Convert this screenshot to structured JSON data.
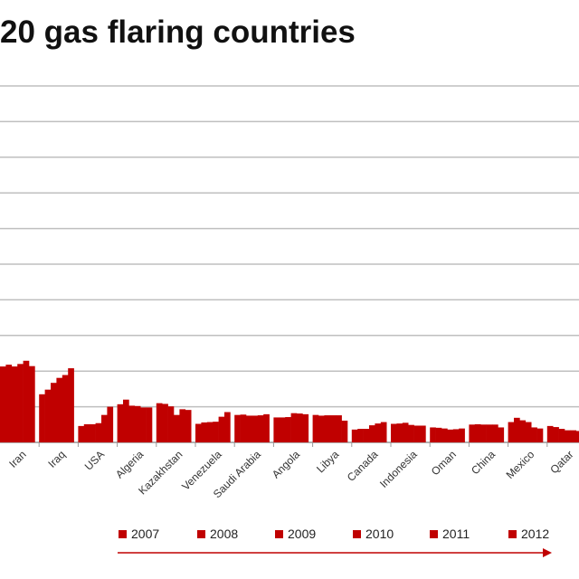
{
  "title": "20 gas flaring countries",
  "colors": {
    "bar": "#c00000",
    "grid": "#bfbfbf",
    "axis": "#999999",
    "arrow": "#c00000"
  },
  "chart_data": {
    "type": "bar",
    "title": "20 gas flaring countries",
    "xlabel": "",
    "ylabel": "",
    "ylim": [
      0,
      100
    ],
    "grid": true,
    "legend_position": "bottom",
    "series_names": [
      "2007",
      "2008",
      "2009",
      "2010",
      "2011",
      "2012"
    ],
    "categories": [
      "Iran",
      "Iraq",
      "USA",
      "Algeria",
      "Kazakhstan",
      "Venezuela",
      "Saudi Arabia",
      "Angola",
      "Libya",
      "Canada",
      "Indonesia",
      "Oman",
      "China",
      "Mexico",
      "Qatar"
    ],
    "values": [
      [
        21.3,
        21.8,
        21.3,
        22.0,
        22.9,
        21.4
      ],
      [
        13.5,
        14.8,
        16.7,
        18.1,
        18.9,
        20.8
      ],
      [
        4.6,
        5.1,
        5.1,
        5.4,
        7.7,
        10.0
      ],
      [
        10.7,
        12.0,
        10.3,
        10.2,
        9.8,
        9.8
      ],
      [
        11.0,
        10.8,
        10.1,
        7.7,
        9.3,
        9.1
      ],
      [
        5.2,
        5.6,
        5.7,
        5.8,
        7.2,
        8.5
      ],
      [
        7.7,
        7.8,
        7.5,
        7.5,
        7.6,
        7.9
      ],
      [
        7.0,
        7.0,
        7.1,
        8.2,
        8.1,
        7.9
      ],
      [
        7.7,
        7.5,
        7.6,
        7.6,
        7.6,
        6.1
      ],
      [
        3.6,
        3.8,
        3.8,
        4.8,
        5.3,
        5.7
      ],
      [
        5.2,
        5.3,
        5.5,
        4.9,
        4.7,
        4.7
      ],
      [
        4.2,
        4.1,
        3.9,
        3.6,
        3.7,
        3.9
      ],
      [
        5.0,
        5.1,
        5.0,
        5.0,
        5.0,
        4.2
      ],
      [
        5.7,
        6.9,
        6.2,
        5.7,
        4.2,
        3.9
      ],
      [
        4.6,
        4.3,
        3.8,
        3.4,
        3.4,
        3.2
      ]
    ]
  }
}
